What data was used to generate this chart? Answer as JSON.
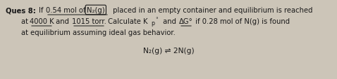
{
  "bg_color": "#ccc5b8",
  "text_color": "#1a1a1a",
  "figsize": [
    4.78,
    1.14
  ],
  "dpi": 100,
  "fs": 7.2,
  "lines": [
    "Ques 8: If 0.54 mol of N₂(g) placed in an empty container and equilibrium is reached",
    "at 4000 K and 1015 torr. Calculate Kᵖᵒ and ΔG° if 0.28 mol of N(g) is found",
    "at equilibrium assuming ideal gas behavior.",
    "N₂(g) ⇌ 2N(g)"
  ]
}
